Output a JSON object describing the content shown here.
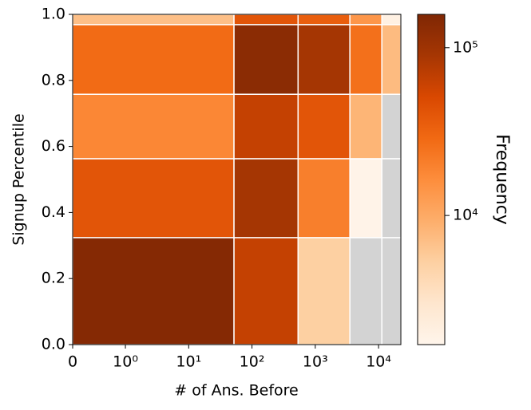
{
  "chart_data": {
    "type": "heatmap",
    "xlabel": "# of Ans. Before",
    "ylabel": "Signup Percentile",
    "colorbar_label": "Frequency",
    "xscale": "symlog",
    "linthresh": 1,
    "linscale": 0.75,
    "x_edges": [
      0,
      52,
      535,
      3525,
      11270,
      22500
    ],
    "y_edges": [
      0,
      0.324,
      0.563,
      0.758,
      0.969,
      1.0
    ],
    "values": [
      [
        145000,
        64000,
        5300,
        null,
        null
      ],
      [
        41000,
        91000,
        20500,
        1800,
        null
      ],
      [
        18000,
        64000,
        41000,
        8300,
        null
      ],
      [
        28000,
        132000,
        91000,
        26000,
        7500
      ],
      [
        7000,
        41000,
        35000,
        14000,
        2000
      ]
    ],
    "xlim": [
      0,
      22500
    ],
    "ylim": [
      0,
      1
    ],
    "xticks": [
      0,
      {
        "value": 1,
        "label": "10⁰"
      },
      {
        "value": 10,
        "label": "10¹"
      },
      {
        "value": 100,
        "label": "10²"
      },
      {
        "value": 1000,
        "label": "10³"
      },
      {
        "value": 10000,
        "label": "10⁴"
      }
    ],
    "yticks": [
      {
        "value": 0,
        "label": "0.0"
      },
      {
        "value": 0.2,
        "label": "0.2"
      },
      {
        "value": 0.4,
        "label": "0.4"
      },
      {
        "value": 0.6,
        "label": "0.6"
      },
      {
        "value": 0.8,
        "label": "0.8"
      },
      {
        "value": 1,
        "label": "1.0"
      }
    ],
    "color_scale": "log",
    "clim": [
      1700,
      158000
    ],
    "cticks": [
      {
        "value": 10000,
        "label": "10⁴"
      },
      {
        "value": 100000,
        "label": "10⁵"
      }
    ],
    "colormap": [
      "#fff5eb",
      "#fee6ce",
      "#fdd0a2",
      "#fdae6b",
      "#fd8d3c",
      "#f16913",
      "#d94801",
      "#a63603",
      "#7f2704"
    ],
    "bad_color": "#d3d3d3"
  }
}
